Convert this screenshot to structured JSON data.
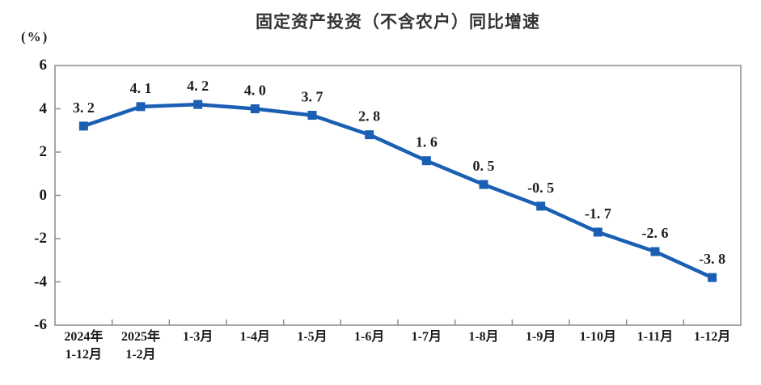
{
  "chart_data": {
    "type": "line",
    "title": "固定资产投资（不含农户）同比增速",
    "unit_label": "(%)",
    "categories": [
      "2024年\n1-12月",
      "2025年\n1-2月",
      "1-3月",
      "1-4月",
      "1-5月",
      "1-6月",
      "1-7月",
      "1-8月",
      "1-9月",
      "1-10月",
      "1-11月",
      "1-12月"
    ],
    "values": [
      3.2,
      4.1,
      4.2,
      4.0,
      3.7,
      2.8,
      1.6,
      0.5,
      -0.5,
      -1.7,
      -2.6,
      -3.8
    ],
    "point_labels": [
      "3. 2",
      "4. 1",
      "4. 2",
      "4. 0",
      "3. 7",
      "2. 8",
      "1. 6",
      "0. 5",
      "-0. 5",
      "-1. 7",
      "-2. 6",
      "-3. 8"
    ],
    "ylim": [
      -6,
      6
    ],
    "yticks": [
      6,
      4,
      2,
      0,
      -2,
      -4,
      -6
    ],
    "grid": false,
    "legend": "none",
    "marker": "square",
    "line_color": "#1A5FB4",
    "axis_color": "#8C8C8C",
    "label_color": "#1F1F1F",
    "title_color": "#333333"
  }
}
